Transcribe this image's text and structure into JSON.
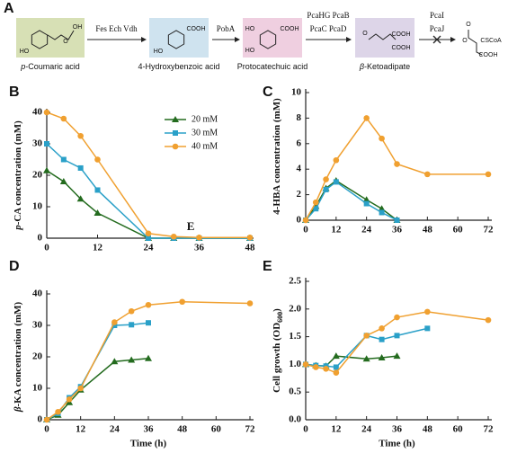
{
  "pathway": {
    "panel": "A",
    "compounds": [
      {
        "name": [
          {
            "text": "p",
            "italic": true
          },
          {
            "text": "-Coumaric acid"
          }
        ],
        "color": "#d7e0b5",
        "atoms": [
          "HO",
          "OH",
          "O"
        ]
      },
      {
        "name": [
          {
            "text": "4-Hydroxybenzoic acid"
          }
        ],
        "color": "#cfe3ef",
        "atoms": [
          "HO",
          "COOH"
        ]
      },
      {
        "name": [
          {
            "text": "Protocatechuic acid"
          }
        ],
        "color": "#efcfe0",
        "atoms": [
          "HO",
          "HO",
          "COOH"
        ]
      },
      {
        "name": [
          {
            "text": "β",
            "italic": true
          },
          {
            "text": "-Ketoadipate"
          }
        ],
        "color": "#ddd5e8",
        "atoms": [
          "O",
          "COOH",
          "COOH"
        ]
      }
    ],
    "final_atoms": [
      "O",
      "O",
      "CSCoA",
      "COOH"
    ],
    "steps": [
      [
        "Fes Ech Vdh"
      ],
      [
        "PobA"
      ],
      [
        "PcaHG  PcaB",
        "PcaC  PcaD"
      ],
      [
        "PcaI",
        "PcaJ"
      ]
    ]
  },
  "chart_data": [
    {
      "type": "line",
      "panel": "B",
      "ylabel": [
        {
          "text": "p",
          "italic": true
        },
        {
          "text": "-CA concentration (mM)"
        }
      ],
      "x": [
        0,
        4,
        8,
        12,
        24,
        30,
        36,
        48
      ],
      "xlim": [
        0,
        48
      ],
      "xticks": [
        0,
        12,
        24,
        36,
        48
      ],
      "ylim": [
        0,
        40
      ],
      "yticks": [
        0,
        10,
        20,
        30,
        40
      ],
      "legend": "upper right",
      "annotation": "E",
      "series": [
        {
          "name": "20 mM",
          "color": "#236b1e",
          "marker": "triangle",
          "values": [
            21.5,
            18,
            12.5,
            8,
            0,
            0,
            0,
            0
          ]
        },
        {
          "name": "30 mM",
          "color": "#2aa0c8",
          "marker": "square",
          "values": [
            30,
            25,
            22.3,
            15.3,
            0,
            0,
            0,
            0
          ]
        },
        {
          "name": "40 mM",
          "color": "#f0a030",
          "marker": "circle",
          "values": [
            40,
            38,
            32.5,
            25,
            1.5,
            0.5,
            0.2,
            0.2
          ]
        }
      ]
    },
    {
      "type": "line",
      "panel": "C",
      "ylabel": [
        {
          "text": "4-HBA concentration (mM)"
        }
      ],
      "x": [
        0,
        4,
        8,
        12,
        24,
        30,
        36,
        48,
        72
      ],
      "xlim": [
        0,
        72
      ],
      "xticks": [
        0,
        12,
        24,
        36,
        48,
        60,
        72
      ],
      "ylim": [
        0,
        10
      ],
      "yticks": [
        0,
        2,
        4,
        6,
        8,
        10
      ],
      "series": [
        {
          "color": "#236b1e",
          "marker": "triangle",
          "values": [
            0,
            1.1,
            2.5,
            3.1,
            1.6,
            0.9,
            0,
            null,
            null
          ]
        },
        {
          "color": "#2aa0c8",
          "marker": "square",
          "values": [
            0,
            0.9,
            2.4,
            3.0,
            1.3,
            0.6,
            0,
            null,
            null
          ]
        },
        {
          "color": "#f0a030",
          "marker": "circle",
          "values": [
            0,
            1.4,
            3.2,
            4.7,
            8.0,
            6.4,
            4.4,
            3.6,
            3.6
          ]
        }
      ]
    },
    {
      "type": "line",
      "panel": "D",
      "ylabel": [
        {
          "text": "β",
          "italic": true
        },
        {
          "text": "-KA concentration (mM)"
        }
      ],
      "xlabel": "Time (h)",
      "x": [
        0,
        4,
        8,
        12,
        24,
        30,
        36,
        48,
        72
      ],
      "xlim": [
        0,
        72
      ],
      "xticks": [
        0,
        12,
        24,
        36,
        48,
        60,
        72
      ],
      "ylim": [
        0,
        40
      ],
      "yticks": [
        0,
        10,
        20,
        30,
        40
      ],
      "series": [
        {
          "color": "#236b1e",
          "marker": "triangle",
          "values": [
            0,
            1.5,
            5.5,
            9.5,
            18.5,
            19,
            19.5,
            null,
            null
          ]
        },
        {
          "color": "#2aa0c8",
          "marker": "square",
          "values": [
            0,
            2,
            7,
            10.5,
            30,
            30.2,
            30.8,
            null,
            null
          ]
        },
        {
          "color": "#f0a030",
          "marker": "circle",
          "values": [
            0,
            2.5,
            6.5,
            10,
            31,
            34.5,
            36.5,
            37.5,
            37
          ]
        }
      ]
    },
    {
      "type": "line",
      "panel": "E",
      "ylabel": [
        {
          "text": "Cell growth (OD"
        },
        {
          "text": "600",
          "sub": true
        },
        {
          "text": ")"
        }
      ],
      "xlabel": "Time (h)",
      "x": [
        0,
        4,
        8,
        12,
        24,
        30,
        36,
        48,
        72
      ],
      "xlim": [
        0,
        72
      ],
      "xticks": [
        0,
        12,
        24,
        36,
        48,
        60,
        72
      ],
      "ylim": [
        0,
        2.5
      ],
      "yticks": [
        {
          "value": 0,
          "label": "0.0"
        },
        0.5,
        {
          "value": 1,
          "label": "1.0"
        },
        1.5,
        {
          "value": 2,
          "label": "2.0"
        },
        2.5
      ],
      "series": [
        {
          "color": "#236b1e",
          "marker": "triangle",
          "values": [
            1.0,
            0.98,
            0.97,
            1.15,
            1.1,
            1.12,
            1.15,
            null,
            null
          ]
        },
        {
          "color": "#2aa0c8",
          "marker": "square",
          "values": [
            1.0,
            0.98,
            0.97,
            0.95,
            1.52,
            1.45,
            1.52,
            1.65,
            null
          ]
        },
        {
          "color": "#f0a030",
          "marker": "circle",
          "values": [
            1.0,
            0.95,
            0.92,
            0.85,
            1.52,
            1.65,
            1.85,
            1.95,
            1.8
          ]
        }
      ]
    }
  ]
}
